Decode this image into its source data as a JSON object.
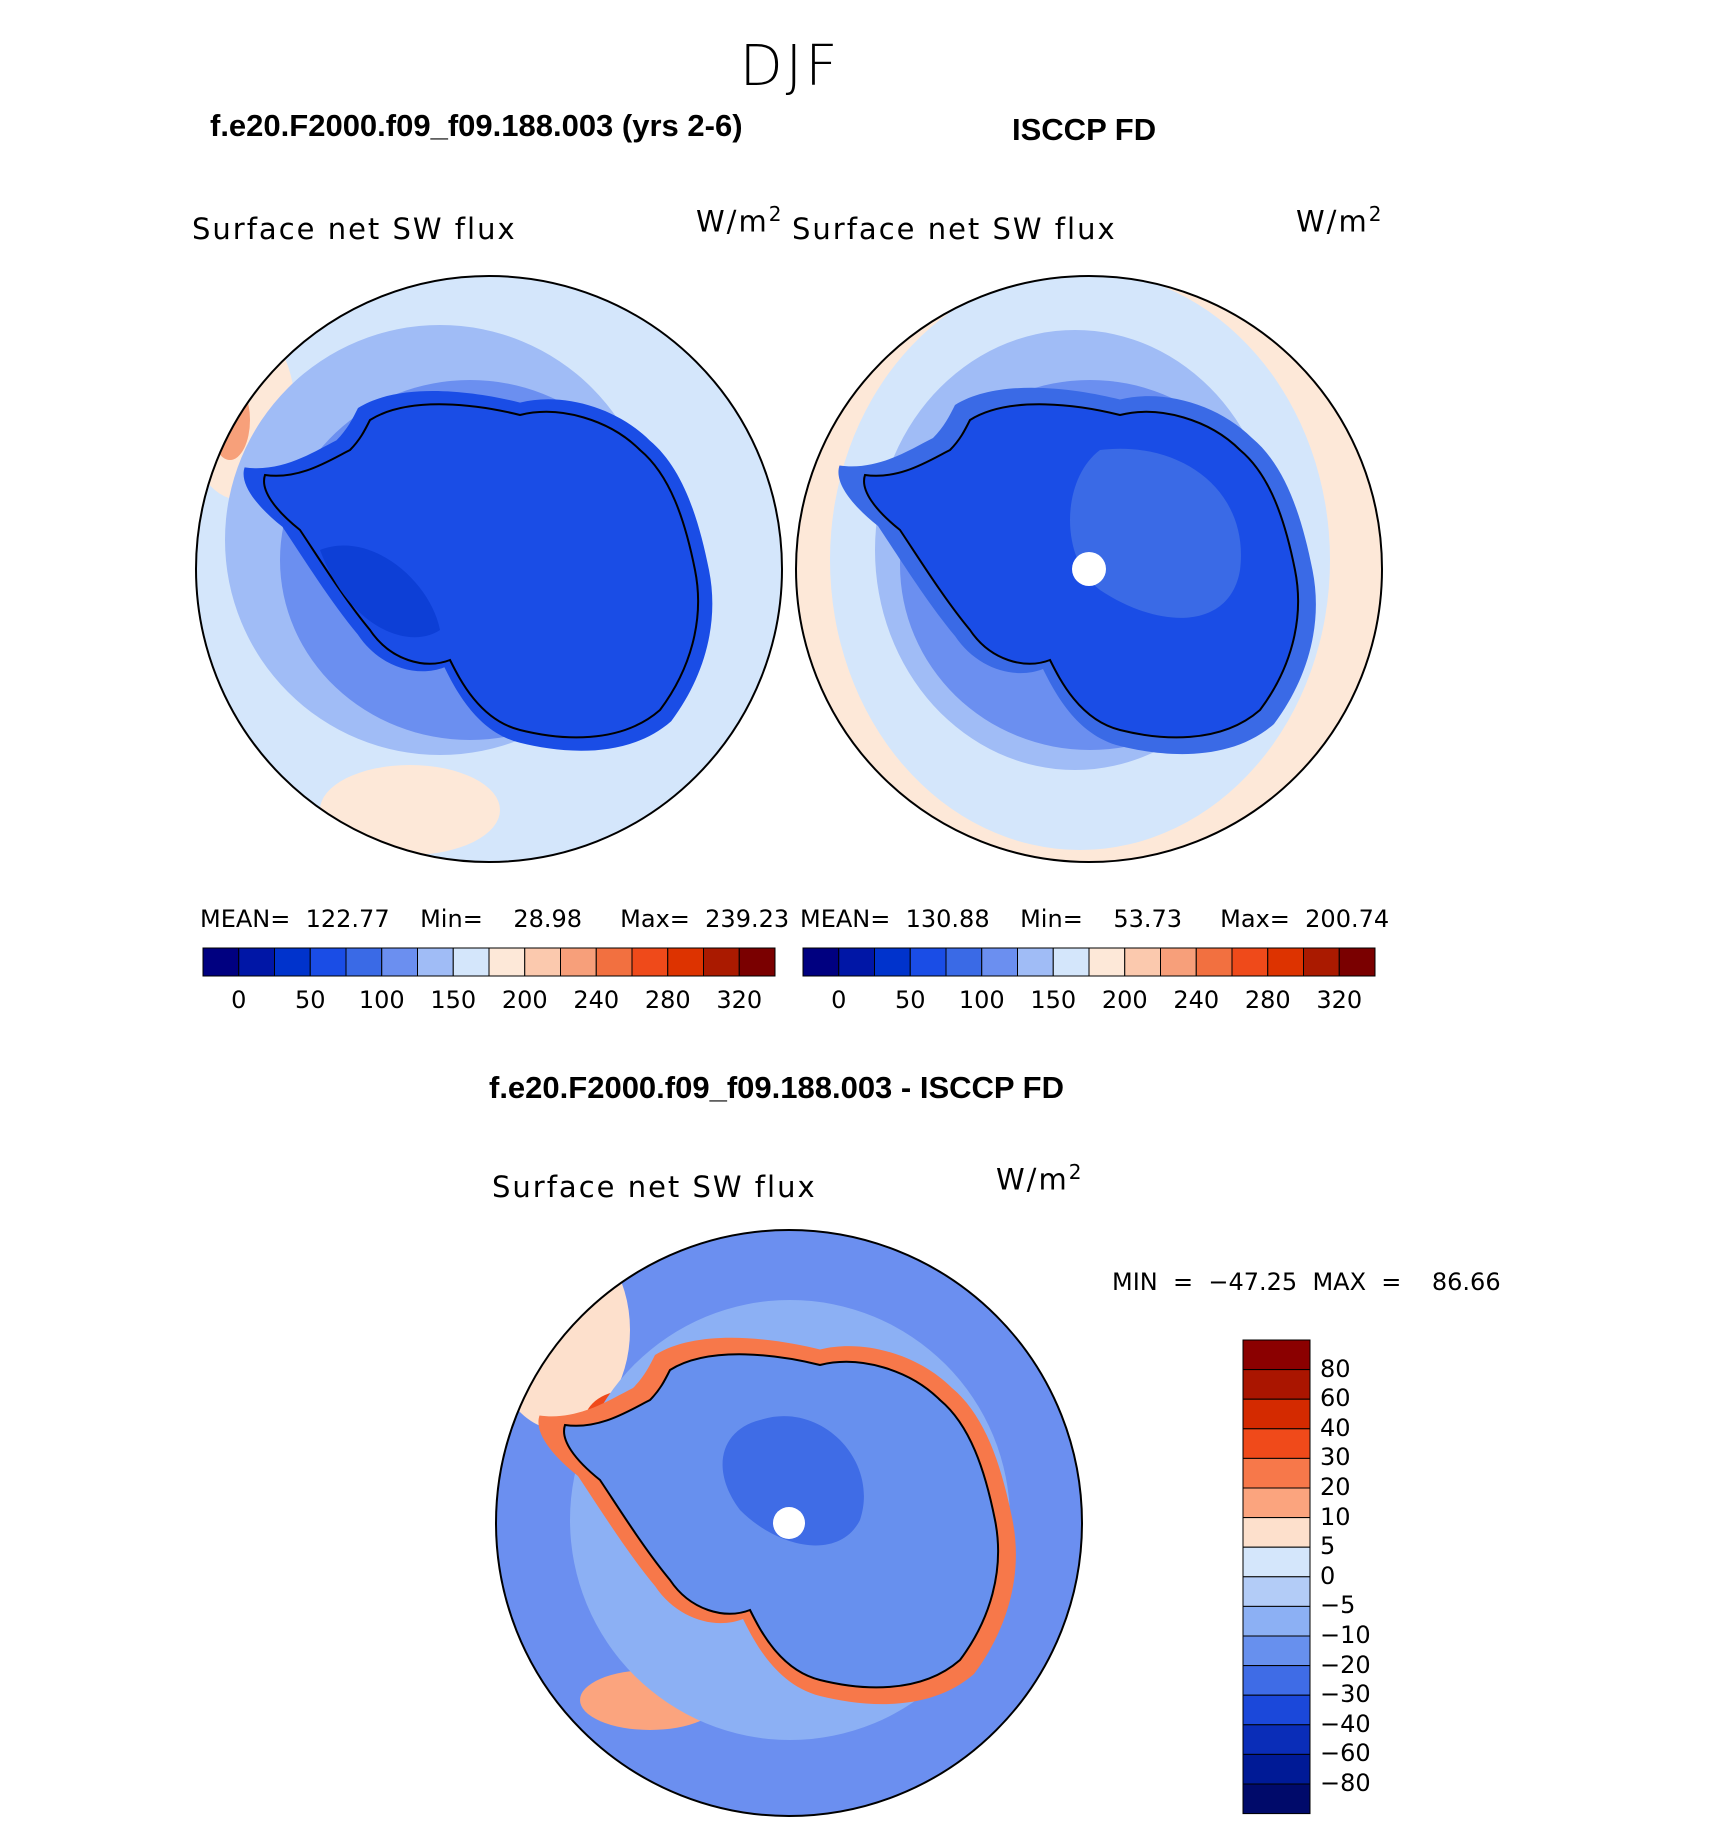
{
  "season": "DJF",
  "panels": [
    {
      "id": "model",
      "case_title": "f.e20.F2000.f09_f09.188.003 (yrs 2-6)",
      "variable": "Surface net SW flux",
      "units_base": "W/m",
      "units_exp": "2",
      "stats": {
        "mean": "122.77",
        "min": "28.98",
        "max": "239.23"
      },
      "stats_text": "MEAN=  122.77    Min=    28.98     Max=  239.23"
    },
    {
      "id": "obs",
      "case_title": "ISCCP FD",
      "variable": "Surface net SW flux",
      "units_base": "W/m",
      "units_exp": "2",
      "stats": {
        "mean": "130.88",
        "min": "53.73",
        "max": "200.74"
      },
      "stats_text": "MEAN=  130.88    Min=    53.73     Max=  200.74"
    }
  ],
  "abs_colorbar": {
    "labels": [
      "0",
      "50",
      "100",
      "150",
      "200",
      "240",
      "280",
      "320"
    ],
    "colors": [
      "#000080",
      "#0016a6",
      "#0033cc",
      "#1a4de6",
      "#3a6ae6",
      "#6b8ff0",
      "#a0bcf6",
      "#d4e6fb",
      "#fde8d8",
      "#fbc9ae",
      "#f79f7a",
      "#f27040",
      "#ef4a1a",
      "#dd3300",
      "#aa1a00",
      "#7a0000"
    ]
  },
  "diff": {
    "title": "f.e20.F2000.f09_f09.188.003 - ISCCP FD",
    "variable": "Surface net SW flux",
    "units_base": "W/m",
    "units_exp": "2",
    "stats_text": "MIN  =  −47.25  MAX  =    86.66",
    "stats": {
      "min": "−47.25",
      "max": "86.66"
    },
    "colorbar": {
      "labels": [
        "80",
        "60",
        "40",
        "30",
        "20",
        "10",
        "5",
        "0",
        "−5",
        "−10",
        "−20",
        "−30",
        "−40",
        "−60",
        "−80"
      ],
      "colors": [
        "#8b0000",
        "#aa1500",
        "#d42a00",
        "#f04a1a",
        "#f7784a",
        "#fba47e",
        "#fde0cc",
        "#d4e6fb",
        "#b3ccf7",
        "#8cb0f4",
        "#6790ee",
        "#3f6ce6",
        "#1b48da",
        "#0a2db8",
        "#001a96",
        "#000a6a"
      ]
    }
  },
  "colors": {
    "ocean_light": "#d4e6fb",
    "ocean_mid": "#a0bcf6",
    "band": "#6b8ff0",
    "continent": "#1a4de6",
    "continent_dark": "#0d3fd6",
    "warm": "#fde8d8",
    "diff_base": "#6b8ff0"
  }
}
